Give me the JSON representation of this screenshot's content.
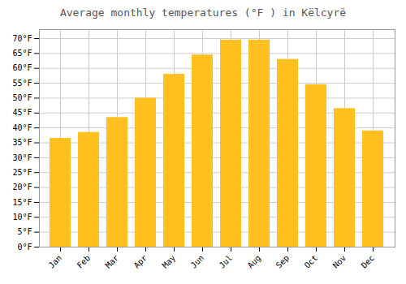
{
  "chart_data": {
    "type": "bar",
    "title": "Average monthly temperatures (°F ) in Këlcyrë",
    "categories": [
      "Jan",
      "Feb",
      "Mar",
      "Apr",
      "May",
      "Jun",
      "Jul",
      "Aug",
      "Sep",
      "Oct",
      "Nov",
      "Dec"
    ],
    "values": [
      36.5,
      38.5,
      43.5,
      50.0,
      58.0,
      64.5,
      69.5,
      69.5,
      63.0,
      54.5,
      46.5,
      39.0
    ],
    "color": "#FFC020",
    "ylim": [
      0,
      73
    ],
    "yticks": [
      {
        "value": 0,
        "label": "0°F"
      },
      {
        "value": 5,
        "label": "5°F"
      },
      {
        "value": 10,
        "label": "10°F"
      },
      {
        "value": 15,
        "label": "15°F"
      },
      {
        "value": 20,
        "label": "20°F"
      },
      {
        "value": 25,
        "label": "25°F"
      },
      {
        "value": 30,
        "label": "30°F"
      },
      {
        "value": 35,
        "label": "35°F"
      },
      {
        "value": 40,
        "label": "40°F"
      },
      {
        "value": 45,
        "label": "45°F"
      },
      {
        "value": 50,
        "label": "50°F"
      },
      {
        "value": 55,
        "label": "55°F"
      },
      {
        "value": 60,
        "label": "60°F"
      },
      {
        "value": 65,
        "label": "65°F"
      },
      {
        "value": 70,
        "label": "70°F"
      }
    ],
    "grid": true
  }
}
